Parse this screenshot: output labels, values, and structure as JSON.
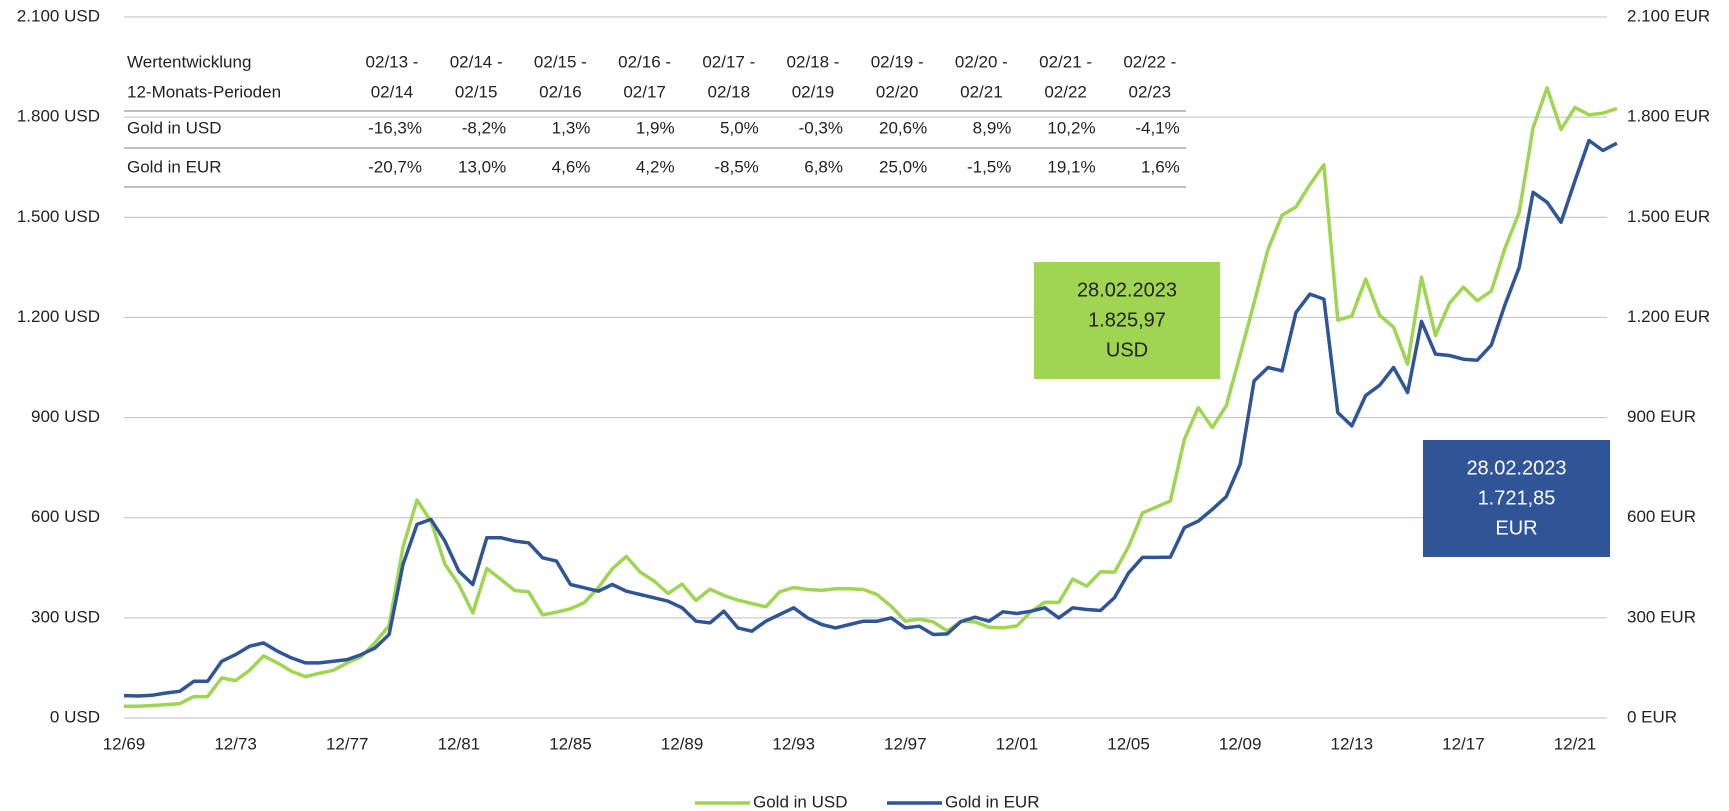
{
  "chart_data": {
    "type": "line",
    "categories": [
      "12/69",
      null,
      null,
      null,
      null,
      null,
      null,
      null,
      "12/73",
      null,
      null,
      null,
      null,
      null,
      null,
      null,
      "12/77",
      null,
      null,
      null,
      null,
      null,
      null,
      null,
      "12/81",
      null,
      null,
      null,
      null,
      null,
      null,
      null,
      "12/85",
      null,
      null,
      null,
      null,
      null,
      null,
      null,
      "12/89",
      null,
      null,
      null,
      null,
      null,
      null,
      null,
      "12/93",
      null,
      null,
      null,
      null,
      null,
      null,
      null,
      "12/97",
      null,
      null,
      null,
      null,
      null,
      null,
      null,
      "12/01",
      null,
      null,
      null,
      null,
      null,
      null,
      null,
      "12/05",
      null,
      null,
      null,
      null,
      null,
      null,
      null,
      "12/09",
      null,
      null,
      null,
      null,
      null,
      null,
      null,
      "12/13",
      null,
      null,
      null,
      null,
      null,
      null,
      null,
      "12/17",
      null,
      null,
      null,
      null,
      null,
      null,
      null,
      "12/21",
      null,
      null,
      null
    ],
    "series": [
      {
        "name": "Gold in USD",
        "color": "#9fd551",
        "values": [
          35,
          35,
          37,
          40,
          43,
          64,
          64,
          120,
          112,
          143,
          186,
          165,
          140,
          124,
          134,
          143,
          165,
          184,
          226,
          277,
          512,
          653,
          590,
          461,
          400,
          315,
          448,
          416,
          382,
          378,
          309,
          317,
          327,
          346,
          391,
          447,
          484,
          437,
          410,
          373,
          401,
          352,
          386,
          367,
          353,
          343,
          333,
          378,
          391,
          385,
          383,
          387,
          387,
          385,
          369,
          334,
          290,
          296,
          288,
          261,
          290,
          288,
          272,
          270,
          276,
          318,
          347,
          346,
          416,
          395,
          438,
          437,
          513,
          614,
          632,
          650,
          834,
          930,
          870,
          935,
          1088,
          1244,
          1405,
          1506,
          1531,
          1598,
          1657,
          1192,
          1204,
          1315,
          1206,
          1171,
          1060,
          1320,
          1146,
          1242,
          1291,
          1250,
          1279,
          1409,
          1515,
          1768,
          1888,
          1763,
          1829,
          1807,
          1812,
          1826
        ]
      },
      {
        "name": "Gold in EUR",
        "color": "#2f5597",
        "axis": "y2",
        "values": [
          67,
          66,
          68,
          75,
          80,
          110,
          110,
          170,
          190,
          215,
          225,
          200,
          180,
          165,
          165,
          170,
          175,
          190,
          210,
          250,
          460,
          580,
          595,
          530,
          440,
          400,
          540,
          540,
          530,
          525,
          480,
          470,
          400,
          390,
          380,
          400,
          380,
          370,
          360,
          350,
          330,
          290,
          285,
          320,
          270,
          260,
          290,
          310,
          330,
          300,
          280,
          270,
          280,
          290,
          290,
          300,
          270,
          275,
          250,
          252,
          289,
          302,
          290,
          318,
          313,
          320,
          330,
          300,
          330,
          325,
          322,
          361,
          434,
          481,
          481,
          482,
          570,
          590,
          625,
          663,
          760,
          1010,
          1050,
          1040,
          1215,
          1270,
          1255,
          915,
          875,
          966,
          997,
          1050,
          975,
          1188,
          1090,
          1086,
          1075,
          1072,
          1117,
          1240,
          1350,
          1575,
          1545,
          1485,
          1610,
          1730,
          1700,
          1722
        ]
      }
    ],
    "ylim": [
      0,
      2100
    ],
    "yticks": [
      {
        "value": 0,
        "label": "0 USD"
      },
      {
        "value": 300,
        "label": "300 USD"
      },
      {
        "value": 600,
        "label": "600 USD"
      },
      {
        "value": 900,
        "label": "900 USD"
      },
      {
        "value": 1200,
        "label": "1.200 USD"
      },
      {
        "value": 1500,
        "label": "1.500 USD"
      },
      {
        "value": 1800,
        "label": "1.800 USD"
      },
      {
        "value": 2100,
        "label": "2.100 USD"
      }
    ],
    "y2lim": [
      0,
      2100
    ],
    "y2ticks": [
      {
        "value": 0,
        "label": "0 EUR"
      },
      {
        "value": 300,
        "label": "300 EUR"
      },
      {
        "value": 600,
        "label": "600 EUR"
      },
      {
        "value": 900,
        "label": "900 EUR"
      },
      {
        "value": 1200,
        "label": "1.200 EUR"
      },
      {
        "value": 1500,
        "label": "1.500 EUR"
      },
      {
        "value": 1800,
        "label": "1.800 EUR"
      },
      {
        "value": 2100,
        "label": "2.100 EUR"
      }
    ],
    "grid": true,
    "legend": "bottom",
    "annotations": [
      {
        "lines": [
          "28.02.2023",
          "1.825,97",
          "USD"
        ],
        "color": "#9fd551"
      },
      {
        "lines": [
          "28.02.2023",
          "1.721,85",
          "EUR"
        ],
        "color": "#2f5597"
      }
    ],
    "table": {
      "header": [
        [
          "Wertentwicklung",
          "12-Monats-Perioden"
        ],
        [
          "02/13 -",
          "02/14"
        ],
        [
          "02/14 -",
          "02/15"
        ],
        [
          "02/15 -",
          "02/16"
        ],
        [
          "02/16 -",
          "02/17"
        ],
        [
          "02/17 -",
          "02/18"
        ],
        [
          "02/18 -",
          "02/19"
        ],
        [
          "02/19 -",
          "02/20"
        ],
        [
          "02/20 -",
          "02/21"
        ],
        [
          "02/21 -",
          "02/22"
        ],
        [
          "02/22 -",
          "02/23"
        ]
      ],
      "rows": [
        [
          "Gold in USD",
          "-16,3%",
          "-8,2%",
          "1,3%",
          "1,9%",
          "5,0%",
          "-0,3%",
          "20,6%",
          "8,9%",
          "10,2%",
          "-4,1%"
        ],
        [
          "Gold in EUR",
          "-20,7%",
          "13,0%",
          "4,6%",
          "4,2%",
          "-8,5%",
          "6,8%",
          "25,0%",
          "-1,5%",
          "19,1%",
          "1,6%"
        ]
      ]
    }
  }
}
